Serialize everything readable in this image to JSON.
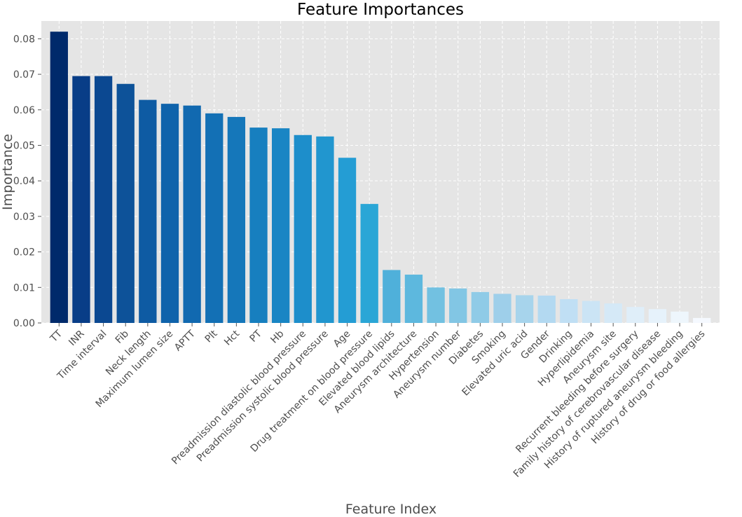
{
  "chart_data": {
    "type": "bar",
    "title": "Feature Importances",
    "xlabel": "Feature Index",
    "ylabel": "Importance",
    "ylim": [
      0,
      0.085
    ],
    "yticks": [
      "0.00",
      "0.01",
      "0.02",
      "0.03",
      "0.04",
      "0.05",
      "0.06",
      "0.07",
      "0.08"
    ],
    "grid": true,
    "categories": [
      "TT",
      "INR",
      "Time interval",
      "Fib",
      "Neck length",
      "Maximum lumen size",
      "APTT",
      "Plt",
      "Hct",
      "PT",
      "Hb",
      "Preadmission diastolic blood pressure",
      "Preadmission systolic blood pressure",
      "Age",
      "Drug treatment on blood pressure",
      "Elevated blood lipids",
      "Aneurysm architecture",
      "Hypertension",
      "Aneurysm number",
      "Diabetes",
      "Smoking",
      "Elevated uric acid",
      "Gender",
      "Drinking",
      "Hyperlipidemia",
      "Aneurysm site",
      "Recurrent bleeding before surgery",
      "Family history of cerebrovascular disease",
      "History of ruptured aneurysm bleeding",
      "History of drug or food allergies"
    ],
    "values": [
      0.082,
      0.0695,
      0.0695,
      0.0673,
      0.0628,
      0.0617,
      0.0612,
      0.059,
      0.058,
      0.055,
      0.0548,
      0.0529,
      0.0525,
      0.0465,
      0.0335,
      0.0149,
      0.0136,
      0.01,
      0.0097,
      0.0087,
      0.0082,
      0.0078,
      0.0077,
      0.0067,
      0.0062,
      0.0055,
      0.0045,
      0.0039,
      0.0032,
      0.0014
    ],
    "colors": [
      "#002a6b",
      "#083d87",
      "#0b4891",
      "#0d5299",
      "#0e5ba3",
      "#0f63ab",
      "#1169b0",
      "#1370b5",
      "#1577ba",
      "#177fbf",
      "#1985c4",
      "#1d8ecb",
      "#2196cf",
      "#249dd4",
      "#2aa6d6",
      "#4fb0da",
      "#5db8de",
      "#72c1e1",
      "#82c6e4",
      "#8fcbe7",
      "#9ecfea",
      "#a7d4ec",
      "#b3d9f1",
      "#c0dff4",
      "#cbe4f5",
      "#d5e9f7",
      "#dfeef9",
      "#e6f2fb",
      "#eef6fc",
      "#f5f9ff"
    ]
  }
}
